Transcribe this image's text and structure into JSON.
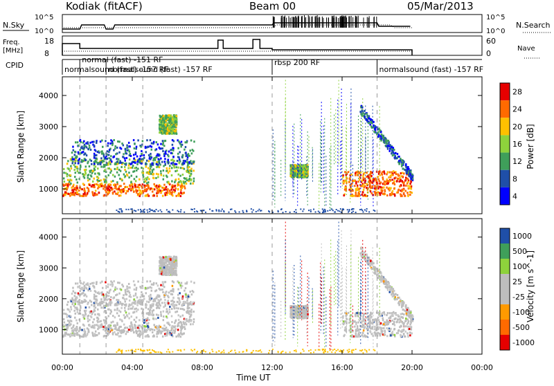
{
  "header": {
    "station": "Kodiak (fitACF)",
    "beam": "Beam 00",
    "date": "05/Mar/2013"
  },
  "top_panel": {
    "left_label": "N.Sky",
    "right_label": "N.Search",
    "left_ticks": [
      "10^5",
      "10^0"
    ],
    "right_ticks": [
      "10^5",
      "10^0"
    ]
  },
  "freq_panel": {
    "left_label_line1": "Freq.",
    "left_label_line2": "[MHz]",
    "right_label": "Nave",
    "left_ticks": [
      "18",
      "8"
    ],
    "right_ticks": [
      "60",
      "0"
    ]
  },
  "cpid": {
    "label": "CPID",
    "segments": [
      {
        "text": "normalsound (fast) -157 RF",
        "start_h": 0.0
      },
      {
        "text": "normal (fast) -151 RF",
        "start_h": 1.0
      },
      {
        "text": "normalsound (fast) -157 RF",
        "start_h": 2.5
      },
      {
        "text": "rbsp 200 RF",
        "start_h": 12.0
      },
      {
        "text": "normalsound (fast) -157 RF",
        "start_h": 18.0
      }
    ]
  },
  "chart_data": [
    {
      "type": "heatmap",
      "name": "power",
      "ylabel": "Slant Range [km]",
      "x_range_h": [
        0,
        24
      ],
      "ylim": [
        200,
        4600
      ],
      "y_ticks": [
        1000,
        2000,
        3000,
        4000
      ],
      "colorbar": {
        "label": "Power [dB]",
        "ticks": [
          "28",
          "24",
          "20",
          "16",
          "12",
          "8",
          "4"
        ],
        "colors": [
          "#e60000",
          "#ff6a00",
          "#ffc000",
          "#8ed23c",
          "#3f9f5a",
          "#1f4fa8",
          "#0000ff"
        ]
      },
      "regions": [
        {
          "t": [
            0.0,
            7.0
          ],
          "r": [
            800,
            1200
          ],
          "level": "high"
        },
        {
          "t": [
            0.0,
            7.5
          ],
          "r": [
            1200,
            2000
          ],
          "level": "mid"
        },
        {
          "t": [
            0.5,
            7.5
          ],
          "r": [
            1800,
            2600
          ],
          "level": "low"
        },
        {
          "t": [
            5.5,
            6.5
          ],
          "r": [
            2800,
            3400
          ],
          "level": "mid"
        },
        {
          "t": [
            13.0,
            14.0
          ],
          "r": [
            1400,
            1800
          ],
          "level": "ring"
        },
        {
          "t": [
            16.0,
            20.0
          ],
          "r": [
            800,
            1600
          ],
          "level": "high"
        },
        {
          "t": [
            17.0,
            20.0
          ],
          "r": [
            1400,
            3600
          ],
          "level": "arc"
        }
      ]
    },
    {
      "type": "heatmap",
      "name": "velocity",
      "ylabel": "Slant Range [km]",
      "x_range_h": [
        0,
        24
      ],
      "ylim": [
        200,
        4600
      ],
      "y_ticks": [
        1000,
        2000,
        3000,
        4000
      ],
      "x_ticks": [
        "00:00",
        "04:00",
        "08:00",
        "12:00",
        "16:00",
        "20:00",
        "00:00"
      ],
      "xlabel": "Time UT",
      "colorbar": {
        "label": "Velocity [m s^-1]",
        "ticks": [
          "1000",
          "500",
          "100",
          "25",
          "-25",
          "-100",
          "-500",
          "-1000"
        ],
        "colors": [
          "#1f4fa8",
          "#3f9f5a",
          "#8ed23c",
          "#bdbdbd",
          "#bdbdbd",
          "#ff9a00",
          "#ff6a00",
          "#e60000"
        ]
      }
    }
  ]
}
